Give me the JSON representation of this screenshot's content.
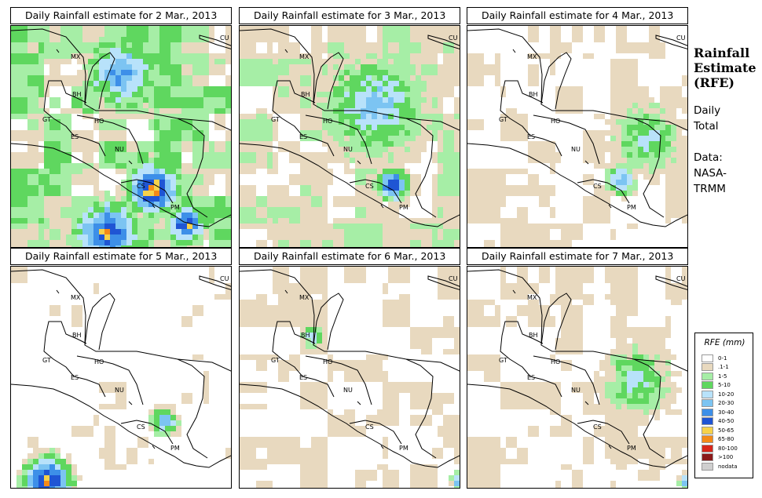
{
  "panels": [
    {
      "title": "Daily Rainfall estimate for  2 Mar., 2013",
      "wetness": 1.0,
      "hotspots": [
        [
          0.63,
          0.72,
          0.16,
          9
        ],
        [
          0.42,
          0.92,
          0.2,
          8
        ],
        [
          0.78,
          0.88,
          0.12,
          8
        ],
        [
          0.49,
          0.2,
          0.22,
          6
        ]
      ]
    },
    {
      "title": "Daily Rainfall estimate for  3 Mar., 2013",
      "wetness": 0.75,
      "hotspots": [
        [
          0.68,
          0.7,
          0.1,
          8
        ],
        [
          0.6,
          0.35,
          0.3,
          5
        ]
      ]
    },
    {
      "title": "Daily Rainfall estimate for  4 Mar., 2013",
      "wetness": 0.45,
      "hotspots": [
        [
          0.68,
          0.68,
          0.09,
          6
        ],
        [
          0.8,
          0.5,
          0.2,
          4
        ]
      ]
    },
    {
      "title": "Daily Rainfall estimate for  5 Mar., 2013",
      "wetness": 0.3,
      "hotspots": [
        [
          0.68,
          0.68,
          0.08,
          6
        ],
        [
          0.15,
          0.95,
          0.15,
          9
        ]
      ]
    },
    {
      "title": "Daily Rainfall estimate for  6 Mar., 2013",
      "wetness": 0.4,
      "hotspots": [
        [
          0.32,
          0.3,
          0.06,
          5
        ],
        [
          0.98,
          0.95,
          0.05,
          6
        ]
      ]
    },
    {
      "title": "Daily Rainfall estimate for  7 Mar., 2013",
      "wetness": 0.45,
      "hotspots": [
        [
          0.75,
          0.5,
          0.2,
          4
        ],
        [
          0.98,
          0.95,
          0.05,
          6
        ]
      ]
    }
  ],
  "country_labels": [
    "MX",
    "CU",
    "BH",
    "GT",
    "HO",
    "ES",
    "NU",
    "CS",
    "PM"
  ],
  "side": {
    "title": [
      "Rainfall",
      "Estimate",
      "(RFE)"
    ],
    "period": [
      "Daily",
      "Total"
    ],
    "source": [
      "Data:",
      "NASA-",
      "TRMM"
    ]
  },
  "legend": {
    "title": "RFE (mm)",
    "classes": [
      {
        "label": "0-1",
        "color": "#ffffff"
      },
      {
        "label": ".1-1",
        "color": "#e8d9bf"
      },
      {
        "label": "1-5",
        "color": "#a6eea6"
      },
      {
        "label": "5-10",
        "color": "#5fd75f"
      },
      {
        "label": "10-20",
        "color": "#b8e2fa"
      },
      {
        "label": "20-30",
        "color": "#7cc4f2"
      },
      {
        "label": "30-40",
        "color": "#3d8fe8"
      },
      {
        "label": "40-50",
        "color": "#1f55d4"
      },
      {
        "label": "50-65",
        "color": "#f6d24a"
      },
      {
        "label": "65-80",
        "color": "#f48a18"
      },
      {
        "label": "80-100",
        "color": "#d8261a"
      },
      {
        "label": ">100",
        "color": "#8b1a1a"
      },
      {
        "label": "nodata",
        "color": "#cfcfcf"
      }
    ]
  }
}
